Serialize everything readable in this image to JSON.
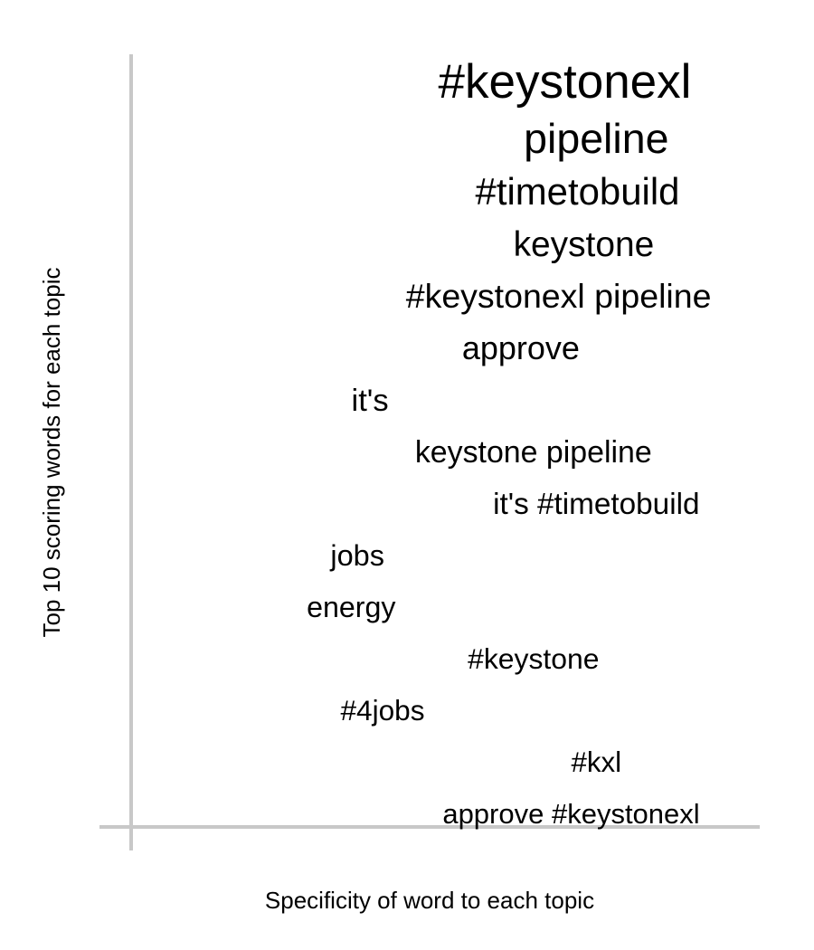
{
  "chart_data": {
    "type": "scatter",
    "title": "",
    "xlabel": "Specificity of word to each topic",
    "ylabel": "Top 10 scoring words for each topic",
    "axis_color": "#c8c8c8",
    "text_color": "#000000",
    "grid": false,
    "legend": "none",
    "words": [
      {
        "label": "#keystonexl",
        "specificity": 0.69,
        "score": 1.0
      },
      {
        "label": "pipeline",
        "specificity": 0.74,
        "score": 0.78
      },
      {
        "label": "#timetobuild",
        "specificity": 0.71,
        "score": 0.62
      },
      {
        "label": "keystone",
        "specificity": 0.72,
        "score": 0.52
      },
      {
        "label": "#keystonexl pipeline",
        "specificity": 0.68,
        "score": 0.47
      },
      {
        "label": "approve",
        "specificity": 0.62,
        "score": 0.42
      },
      {
        "label": "it's",
        "specificity": 0.38,
        "score": 0.37
      },
      {
        "label": "keystone pipeline",
        "specificity": 0.64,
        "score": 0.35
      },
      {
        "label": "it's #timetobuild",
        "specificity": 0.74,
        "score": 0.33
      },
      {
        "label": "jobs",
        "specificity": 0.36,
        "score": 0.3
      },
      {
        "label": "energy",
        "specificity": 0.35,
        "score": 0.29
      },
      {
        "label": "#keystone",
        "specificity": 0.64,
        "score": 0.28
      },
      {
        "label": "#4jobs",
        "specificity": 0.4,
        "score": 0.27
      },
      {
        "label": "#kxl",
        "specificity": 0.74,
        "score": 0.26
      },
      {
        "label": "approve #keystonexl",
        "specificity": 0.7,
        "score": 0.25
      }
    ]
  }
}
